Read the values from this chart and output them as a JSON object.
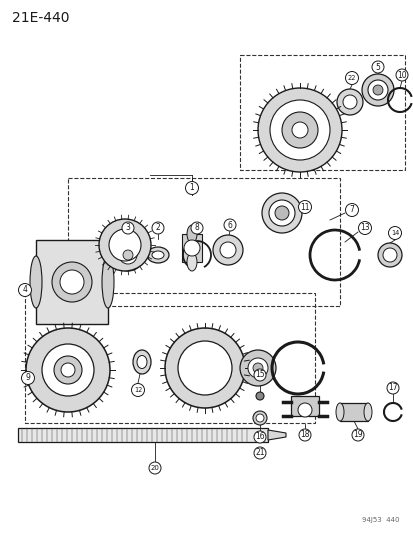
{
  "title": "21E-440",
  "watermark": "94J53  440",
  "bg_color": "#ffffff",
  "fg_color": "#1a1a1a",
  "figsize": [
    4.14,
    5.33
  ],
  "dpi": 100
}
